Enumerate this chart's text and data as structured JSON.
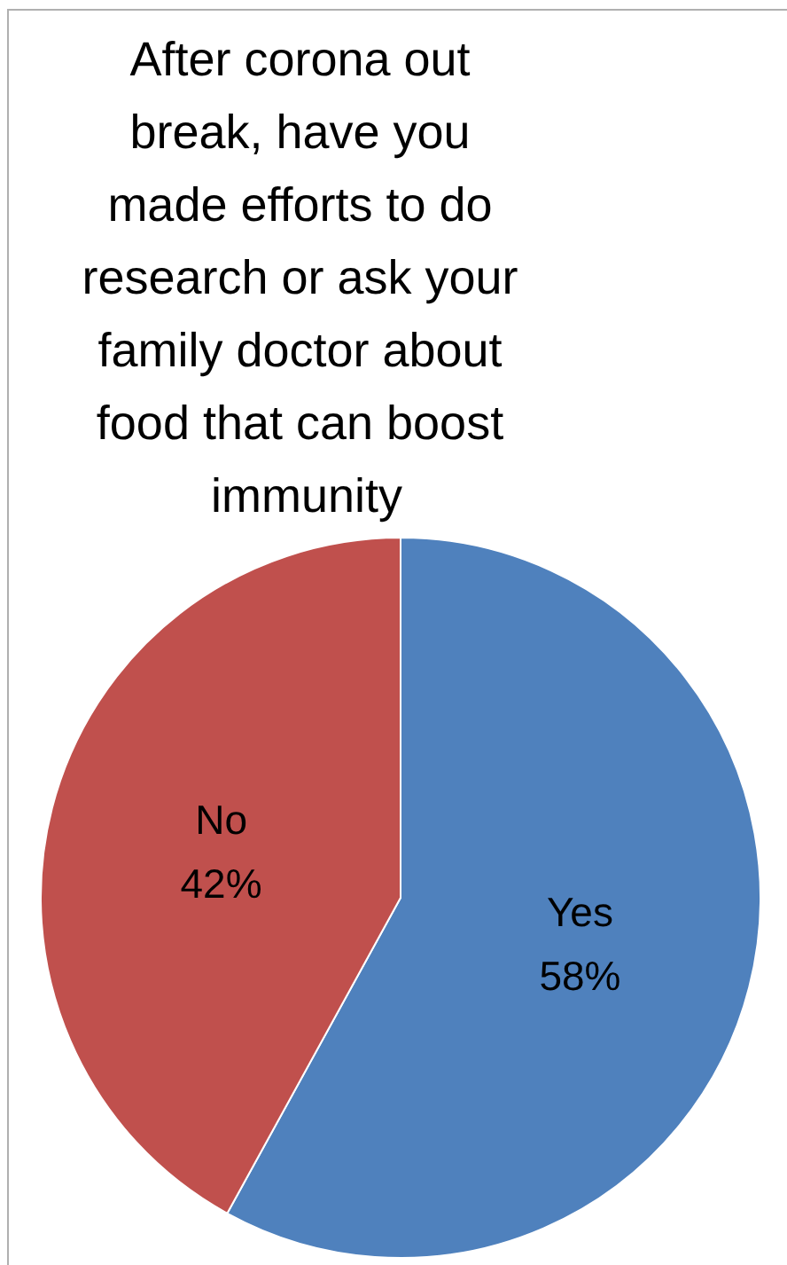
{
  "chart_data": {
    "type": "pie",
    "title": "After corona out break, have you made efforts to do research or ask your family doctor about food that can boost immunity",
    "categories": [
      "Yes",
      "No"
    ],
    "values": [
      58,
      42
    ],
    "value_labels": [
      "58%",
      "42%"
    ],
    "colors": [
      "#4f81bd",
      "#c0504d"
    ],
    "legend": false
  }
}
